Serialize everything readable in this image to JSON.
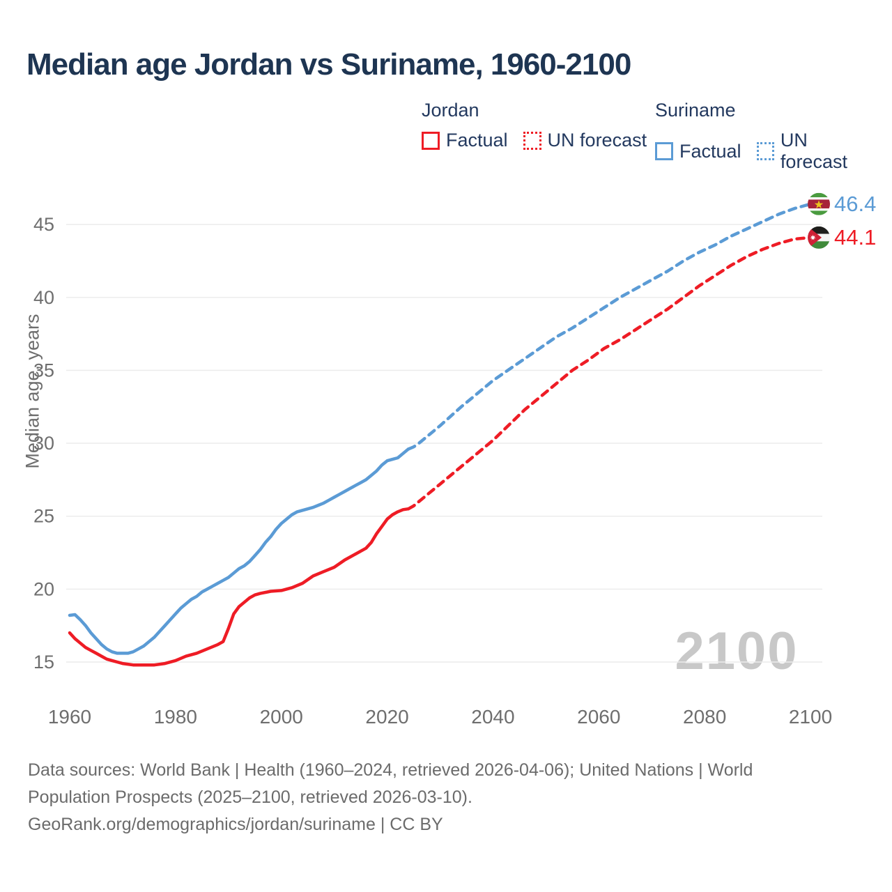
{
  "title": "Median age Jordan vs Suriname, 1960-2100",
  "watermark": "2100",
  "y_axis_title": "Median age, years",
  "legend": {
    "groups": [
      {
        "name": "Jordan",
        "color": "#ee1c25",
        "items": [
          {
            "label": "Factual",
            "line_style": "solid"
          },
          {
            "label": "UN forecast",
            "line_style": "dotted"
          }
        ]
      },
      {
        "name": "Suriname",
        "color": "#5b9bd5",
        "items": [
          {
            "label": "Factual",
            "line_style": "solid"
          },
          {
            "label": "UN forecast",
            "line_style": "dotted"
          }
        ]
      }
    ]
  },
  "footer": {
    "lines": [
      "Data sources: World Bank | Health (1960–2024, retrieved 2026-04-06); United Nations | World",
      "Population Prospects (2025–2100, retrieved 2026-03-10).",
      "GeoRank.org/demographics/jordan/suriname | CC BY"
    ]
  },
  "colors": {
    "jordan": "#ee1c25",
    "suriname": "#5b9bd5",
    "title_text": "#1e3552",
    "axis_text": "#6e6e6e",
    "gridline": "#ececec",
    "watermark": "#c8c8c8",
    "footer_text": "#6b6b6b"
  },
  "flags": {
    "suriname": {
      "bands": [
        [
          "#4a9b3f",
          0.2
        ],
        [
          "#ffffff",
          0.1
        ],
        [
          "#a6243a",
          0.4
        ],
        [
          "#ffffff",
          0.1
        ],
        [
          "#4a9b3f",
          0.2
        ]
      ],
      "star": "#eac71d",
      "star_points": 5
    },
    "jordan": {
      "bands": [
        [
          "#1d1d1b",
          0.3333
        ],
        [
          "#f4f4f4",
          0.3333
        ],
        [
          "#3f8a3a",
          0.3334
        ]
      ],
      "chevron": "#cf2136",
      "star": "#ffffff",
      "star_points": 7
    }
  },
  "chart_data": {
    "type": "line",
    "title": "Median age Jordan vs Suriname, 1960-2100",
    "xlabel": "",
    "ylabel": "Median age, years",
    "xlim": [
      1953,
      2113
    ],
    "ylim": [
      13,
      47.5
    ],
    "x_ticks": [
      1960,
      1980,
      2000,
      2020,
      2040,
      2060,
      2080,
      2100
    ],
    "y_ticks": [
      15,
      20,
      25,
      30,
      35,
      40,
      45
    ],
    "grid": "horizontal",
    "legend_position": "top-right",
    "series": [
      {
        "name": "Suriname · Factual",
        "country": "Suriname",
        "color": "#5b9bd5",
        "style": "solid",
        "points": [
          [
            1960,
            18.2
          ],
          [
            1961,
            18.25
          ],
          [
            1962,
            17.9
          ],
          [
            1963,
            17.5
          ],
          [
            1964,
            17.0
          ],
          [
            1965,
            16.6
          ],
          [
            1966,
            16.2
          ],
          [
            1967,
            15.9
          ],
          [
            1968,
            15.7
          ],
          [
            1969,
            15.6
          ],
          [
            1970,
            15.6
          ],
          [
            1971,
            15.6
          ],
          [
            1972,
            15.7
          ],
          [
            1973,
            15.9
          ],
          [
            1974,
            16.1
          ],
          [
            1975,
            16.4
          ],
          [
            1976,
            16.7
          ],
          [
            1977,
            17.1
          ],
          [
            1978,
            17.5
          ],
          [
            1979,
            17.9
          ],
          [
            1980,
            18.3
          ],
          [
            1981,
            18.7
          ],
          [
            1982,
            19.0
          ],
          [
            1983,
            19.3
          ],
          [
            1984,
            19.5
          ],
          [
            1985,
            19.8
          ],
          [
            1986,
            20.0
          ],
          [
            1987,
            20.2
          ],
          [
            1988,
            20.4
          ],
          [
            1989,
            20.6
          ],
          [
            1990,
            20.8
          ],
          [
            1991,
            21.1
          ],
          [
            1992,
            21.4
          ],
          [
            1993,
            21.6
          ],
          [
            1994,
            21.9
          ],
          [
            1995,
            22.3
          ],
          [
            1996,
            22.7
          ],
          [
            1997,
            23.2
          ],
          [
            1998,
            23.6
          ],
          [
            1999,
            24.1
          ],
          [
            2000,
            24.5
          ],
          [
            2001,
            24.8
          ],
          [
            2002,
            25.1
          ],
          [
            2003,
            25.3
          ],
          [
            2004,
            25.4
          ],
          [
            2005,
            25.5
          ],
          [
            2006,
            25.6
          ],
          [
            2007,
            25.75
          ],
          [
            2008,
            25.9
          ],
          [
            2009,
            26.1
          ],
          [
            2010,
            26.3
          ],
          [
            2011,
            26.5
          ],
          [
            2012,
            26.7
          ],
          [
            2013,
            26.9
          ],
          [
            2014,
            27.1
          ],
          [
            2015,
            27.3
          ],
          [
            2016,
            27.5
          ],
          [
            2017,
            27.8
          ],
          [
            2018,
            28.1
          ],
          [
            2019,
            28.5
          ],
          [
            2020,
            28.8
          ],
          [
            2021,
            28.9
          ],
          [
            2022,
            29.0
          ],
          [
            2023,
            29.3
          ],
          [
            2024,
            29.6
          ]
        ]
      },
      {
        "name": "Suriname · UN forecast",
        "country": "Suriname",
        "color": "#5b9bd5",
        "style": "dashed",
        "end_label": "46.4",
        "end_value": 46.4,
        "flag": "suriname",
        "points": [
          [
            2024,
            29.6
          ],
          [
            2025,
            29.75
          ],
          [
            2026,
            30.0
          ],
          [
            2028,
            30.6
          ],
          [
            2030,
            31.2
          ],
          [
            2032,
            31.85
          ],
          [
            2034,
            32.5
          ],
          [
            2036,
            33.1
          ],
          [
            2038,
            33.7
          ],
          [
            2040,
            34.3
          ],
          [
            2042,
            34.8
          ],
          [
            2044,
            35.3
          ],
          [
            2046,
            35.8
          ],
          [
            2048,
            36.3
          ],
          [
            2050,
            36.8
          ],
          [
            2052,
            37.3
          ],
          [
            2055,
            37.9
          ],
          [
            2058,
            38.6
          ],
          [
            2061,
            39.3
          ],
          [
            2064,
            40.0
          ],
          [
            2067,
            40.6
          ],
          [
            2070,
            41.2
          ],
          [
            2073,
            41.8
          ],
          [
            2076,
            42.5
          ],
          [
            2079,
            43.1
          ],
          [
            2082,
            43.6
          ],
          [
            2085,
            44.2
          ],
          [
            2088,
            44.7
          ],
          [
            2091,
            45.2
          ],
          [
            2094,
            45.7
          ],
          [
            2097,
            46.1
          ],
          [
            2100,
            46.4
          ]
        ]
      },
      {
        "name": "Jordan · Factual",
        "country": "Jordan",
        "color": "#ee1c25",
        "style": "solid",
        "points": [
          [
            1960,
            17.0
          ],
          [
            1961,
            16.6
          ],
          [
            1962,
            16.3
          ],
          [
            1963,
            16.0
          ],
          [
            1964,
            15.8
          ],
          [
            1965,
            15.6
          ],
          [
            1966,
            15.4
          ],
          [
            1967,
            15.2
          ],
          [
            1968,
            15.1
          ],
          [
            1969,
            15.0
          ],
          [
            1970,
            14.9
          ],
          [
            1971,
            14.85
          ],
          [
            1972,
            14.8
          ],
          [
            1974,
            14.8
          ],
          [
            1976,
            14.8
          ],
          [
            1978,
            14.9
          ],
          [
            1980,
            15.1
          ],
          [
            1982,
            15.4
          ],
          [
            1984,
            15.6
          ],
          [
            1986,
            15.9
          ],
          [
            1988,
            16.2
          ],
          [
            1989,
            16.4
          ],
          [
            1990,
            17.3
          ],
          [
            1991,
            18.3
          ],
          [
            1992,
            18.8
          ],
          [
            1993,
            19.1
          ],
          [
            1994,
            19.4
          ],
          [
            1995,
            19.6
          ],
          [
            1996,
            19.7
          ],
          [
            1998,
            19.85
          ],
          [
            2000,
            19.9
          ],
          [
            2002,
            20.1
          ],
          [
            2004,
            20.4
          ],
          [
            2006,
            20.9
          ],
          [
            2008,
            21.2
          ],
          [
            2010,
            21.5
          ],
          [
            2012,
            22.0
          ],
          [
            2014,
            22.4
          ],
          [
            2016,
            22.8
          ],
          [
            2017,
            23.2
          ],
          [
            2018,
            23.8
          ],
          [
            2019,
            24.3
          ],
          [
            2020,
            24.8
          ],
          [
            2021,
            25.1
          ],
          [
            2022,
            25.3
          ],
          [
            2023,
            25.45
          ],
          [
            2024,
            25.5
          ]
        ]
      },
      {
        "name": "Jordan · UN forecast",
        "country": "Jordan",
        "color": "#ee1c25",
        "style": "dashed",
        "end_label": "44.1",
        "end_value": 44.1,
        "flag": "jordan",
        "points": [
          [
            2024,
            25.5
          ],
          [
            2025,
            25.7
          ],
          [
            2026,
            26.0
          ],
          [
            2028,
            26.6
          ],
          [
            2030,
            27.2
          ],
          [
            2032,
            27.8
          ],
          [
            2034,
            28.4
          ],
          [
            2036,
            29.0
          ],
          [
            2038,
            29.6
          ],
          [
            2040,
            30.2
          ],
          [
            2042,
            30.9
          ],
          [
            2044,
            31.6
          ],
          [
            2046,
            32.3
          ],
          [
            2048,
            32.9
          ],
          [
            2050,
            33.5
          ],
          [
            2052,
            34.1
          ],
          [
            2055,
            35.0
          ],
          [
            2058,
            35.7
          ],
          [
            2061,
            36.5
          ],
          [
            2064,
            37.1
          ],
          [
            2067,
            37.8
          ],
          [
            2070,
            38.5
          ],
          [
            2073,
            39.2
          ],
          [
            2076,
            40.0
          ],
          [
            2079,
            40.8
          ],
          [
            2082,
            41.5
          ],
          [
            2085,
            42.2
          ],
          [
            2088,
            42.8
          ],
          [
            2091,
            43.3
          ],
          [
            2094,
            43.7
          ],
          [
            2097,
            44.0
          ],
          [
            2100,
            44.1
          ]
        ]
      }
    ]
  }
}
